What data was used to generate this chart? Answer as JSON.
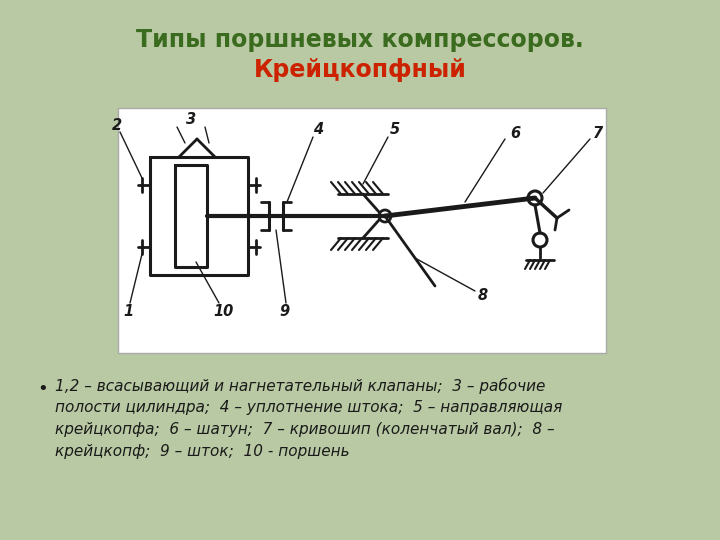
{
  "title_line1": "Типы поршневых компрессоров.",
  "title_line2": "Крейцкопфный",
  "title_color1": "#3a6b1e",
  "title_color2": "#cc2200",
  "bg_color": "#b8c9a3",
  "diagram_bg": "#ffffff",
  "line_color": "#1a1a1a",
  "bullet_text_line1": "1,2 – всасывающий и нагнетательный клапаны;  3 – рабочие",
  "bullet_text_line2": "полости цилиндра;  4 – уплотнение штока;  5 – направляющая",
  "bullet_text_line3": "крейцкопфа;  6 – шатун;  7 – кривошип (коленчатый вал);  8 –",
  "bullet_text_line4": "крейцкопф;  9 – шток;  10 - поршень",
  "text_color": "#1a1a1a"
}
